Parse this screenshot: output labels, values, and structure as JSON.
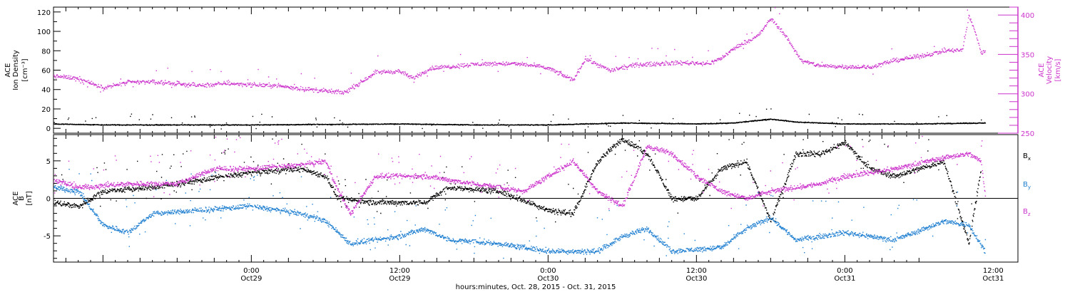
{
  "chart_data": [
    {
      "type": "scatter",
      "panel": "top",
      "x_range": [
        "2015-10-28T08:00",
        "2015-10-31T14:00"
      ],
      "ylabel_left": [
        "ACE",
        "Ion Density",
        "[cm⁻³]"
      ],
      "ylabel_right": [
        "ACE",
        "Velocity",
        "[km/s]"
      ],
      "y_left_ticks": [
        "0",
        "20",
        "40",
        "60",
        "80",
        "100",
        "120"
      ],
      "y_left_range": [
        -5,
        125
      ],
      "y_right_ticks": [
        "250",
        "300",
        "350",
        "400"
      ],
      "y_right_range": [
        250,
        410
      ],
      "series": [
        {
          "axis": "right",
          "color": "#cc33cc",
          "points": [
            [
              "10-28 08:00",
              323
            ],
            [
              "10-28 10:00",
              320
            ],
            [
              "10-28 12:00",
              308
            ],
            [
              "10-28 14:00",
              315
            ],
            [
              "10-28 16:00",
              316
            ],
            [
              "10-28 18:00",
              313
            ],
            [
              "10-28 20:00",
              311
            ],
            [
              "10-28 22:00",
              314
            ],
            [
              "10-29 00:00",
              312
            ],
            [
              "10-29 02:00",
              311
            ],
            [
              "10-29 04:00",
              307
            ],
            [
              "10-29 06:00",
              304
            ],
            [
              "10-29 07:30",
              302
            ],
            [
              "10-29 09:00",
              317
            ],
            [
              "10-29 10:00",
              328
            ],
            [
              "10-29 12:00",
              329
            ],
            [
              "10-29 13:00",
              320
            ],
            [
              "10-29 14:30",
              333
            ],
            [
              "10-29 16:00",
              335
            ],
            [
              "10-29 18:00",
              338
            ],
            [
              "10-29 20:00",
              339
            ],
            [
              "10-29 22:00",
              338
            ],
            [
              "10-30 00:00",
              333
            ],
            [
              "10-30 02:00",
              318
            ],
            [
              "10-30 03:00",
              345
            ],
            [
              "10-30 05:00",
              330
            ],
            [
              "10-30 07:00",
              337
            ],
            [
              "10-30 09:00",
              339
            ],
            [
              "10-30 11:00",
              340
            ],
            [
              "10-30 13:00",
              339
            ],
            [
              "10-30 14:00",
              346
            ],
            [
              "10-30 15:00",
              358
            ],
            [
              "10-30 17:00",
              375
            ],
            [
              "10-30 18:00",
              396
            ],
            [
              "10-30 19:00",
              378
            ],
            [
              "10-30 20:30",
              342
            ],
            [
              "10-30 22:00",
              336
            ],
            [
              "10-31 00:00",
              335
            ],
            [
              "10-31 02:00",
              334
            ],
            [
              "10-31 04:00",
              343
            ],
            [
              "10-31 06:00",
              348
            ],
            [
              "10-31 08:00",
              355
            ],
            [
              "10-31 09:30",
              356
            ],
            [
              "10-31 10:00",
              400
            ],
            [
              "10-31 10:40",
              372
            ],
            [
              "10-31 11:00",
              352
            ],
            [
              "10-31 11:20",
              355
            ]
          ]
        },
        {
          "axis": "left",
          "color": "#000000",
          "points": [
            [
              "10-28 08:00",
              5
            ],
            [
              "10-28 12:00",
              4
            ],
            [
              "10-28 18:00",
              4
            ],
            [
              "10-29 00:00",
              4
            ],
            [
              "10-29 06:00",
              4.5
            ],
            [
              "10-29 12:00",
              5
            ],
            [
              "10-29 18:00",
              4
            ],
            [
              "10-30 00:00",
              4
            ],
            [
              "10-30 06:00",
              6
            ],
            [
              "10-30 12:00",
              5
            ],
            [
              "10-30 15:00",
              6
            ],
            [
              "10-30 18:00",
              10
            ],
            [
              "10-30 20:00",
              7
            ],
            [
              "10-31 00:00",
              5
            ],
            [
              "10-31 06:00",
              5
            ],
            [
              "10-31 11:20",
              6
            ]
          ]
        }
      ]
    },
    {
      "type": "scatter",
      "panel": "bottom",
      "x_range": [
        "2015-10-28T08:00",
        "2015-10-31T14:00"
      ],
      "ylabel_left": [
        "ACE",
        "B",
        "[nT]"
      ],
      "y_ticks": [
        "-5",
        "0",
        "5"
      ],
      "y_range": [
        -8.5,
        8.5
      ],
      "x_ticks": [
        {
          "time": "10-29 00:00",
          "label1": "0:00",
          "label2": "Oct29"
        },
        {
          "time": "10-29 12:00",
          "label1": "12:00",
          "label2": "Oct29"
        },
        {
          "time": "10-30 00:00",
          "label1": "0:00",
          "label2": "Oct30"
        },
        {
          "time": "10-30 12:00",
          "label1": "12:00",
          "label2": "Oct30"
        },
        {
          "time": "10-31 00:00",
          "label1": "0:00",
          "label2": "Oct31"
        },
        {
          "time": "10-31 12:00",
          "label1": "12:00",
          "label2": "Oct31"
        }
      ],
      "xlabel": "hours:minutes, Oct. 28, 2015 - Oct. 31, 2015",
      "legend": [
        {
          "main": "B",
          "sub": "x",
          "color": "#000000"
        },
        {
          "main": "B",
          "sub": "y",
          "color": "#1f7fd0"
        },
        {
          "main": "B",
          "sub": "z",
          "color": "#cc33cc"
        }
      ],
      "series": [
        {
          "color": "#000000",
          "points": [
            [
              "10-28 08:00",
              -0.5
            ],
            [
              "10-28 10:00",
              -1
            ],
            [
              "10-28 12:00",
              1
            ],
            [
              "10-28 16:00",
              1.5
            ],
            [
              "10-28 20:00",
              2.5
            ],
            [
              "10-29 00:00",
              3.5
            ],
            [
              "10-29 04:00",
              4
            ],
            [
              "10-29 06:00",
              3
            ],
            [
              "10-29 07:00",
              0
            ],
            [
              "10-29 10:00",
              -0.5
            ],
            [
              "10-29 14:00",
              -0.5
            ],
            [
              "10-29 16:00",
              1.5
            ],
            [
              "10-29 20:00",
              1
            ],
            [
              "10-30 00:00",
              -1.5
            ],
            [
              "10-30 02:00",
              -2
            ],
            [
              "10-30 04:00",
              5
            ],
            [
              "10-30 06:00",
              8
            ],
            [
              "10-30 08:00",
              6
            ],
            [
              "10-30 10:00",
              0
            ],
            [
              "10-30 12:00",
              0
            ],
            [
              "10-30 14:00",
              4
            ],
            [
              "10-30 16:00",
              5
            ],
            [
              "10-30 18:00",
              -3
            ],
            [
              "10-30 20:00",
              6
            ],
            [
              "10-30 22:00",
              6
            ],
            [
              "10-31 00:00",
              7.5
            ],
            [
              "10-31 02:00",
              4
            ],
            [
              "10-31 04:00",
              3
            ],
            [
              "10-31 06:00",
              4
            ],
            [
              "10-31 08:00",
              5
            ],
            [
              "10-31 10:00",
              -6
            ],
            [
              "10-31 11:00",
              4
            ]
          ]
        },
        {
          "color": "#1f7fd0",
          "points": [
            [
              "10-28 08:00",
              1.5
            ],
            [
              "10-28 10:00",
              1
            ],
            [
              "10-28 12:00",
              -3.5
            ],
            [
              "10-28 14:00",
              -4.5
            ],
            [
              "10-28 16:00",
              -2
            ],
            [
              "10-28 20:00",
              -1.5
            ],
            [
              "10-29 00:00",
              -1
            ],
            [
              "10-29 04:00",
              -2
            ],
            [
              "10-29 06:00",
              -3
            ],
            [
              "10-29 08:00",
              -6
            ],
            [
              "10-29 12:00",
              -5
            ],
            [
              "10-29 14:00",
              -4
            ],
            [
              "10-29 16:00",
              -5.5
            ],
            [
              "10-29 20:00",
              -6
            ],
            [
              "10-30 00:00",
              -7
            ],
            [
              "10-30 04:00",
              -7
            ],
            [
              "10-30 06:00",
              -5
            ],
            [
              "10-30 08:00",
              -4
            ],
            [
              "10-30 10:00",
              -7
            ],
            [
              "10-30 14:00",
              -6.5
            ],
            [
              "10-30 16:00",
              -4
            ],
            [
              "10-30 18:00",
              -2.5
            ],
            [
              "10-30 20:00",
              -5.5
            ],
            [
              "10-31 00:00",
              -4.5
            ],
            [
              "10-31 04:00",
              -5.5
            ],
            [
              "10-31 08:00",
              -3
            ],
            [
              "10-31 10:00",
              -3.5
            ],
            [
              "10-31 11:20",
              -7
            ]
          ]
        },
        {
          "color": "#cc33cc",
          "points": [
            [
              "10-28 08:00",
              2.5
            ],
            [
              "10-28 10:00",
              1.5
            ],
            [
              "10-28 14:00",
              2
            ],
            [
              "10-28 18:00",
              2
            ],
            [
              "10-28 21:00",
              4
            ],
            [
              "10-29 00:00",
              4
            ],
            [
              "10-29 04:00",
              4.5
            ],
            [
              "10-29 06:00",
              5
            ],
            [
              "10-29 07:00",
              1
            ],
            [
              "10-29 08:00",
              -2
            ],
            [
              "10-29 10:00",
              3
            ],
            [
              "10-29 14:00",
              3
            ],
            [
              "10-29 18:00",
              2
            ],
            [
              "10-29 22:00",
              1
            ],
            [
              "10-30 00:00",
              3
            ],
            [
              "10-30 02:00",
              5
            ],
            [
              "10-30 04:00",
              1
            ],
            [
              "10-30 06:00",
              -1
            ],
            [
              "10-30 08:00",
              7
            ],
            [
              "10-30 10:00",
              6
            ],
            [
              "10-30 12:00",
              3
            ],
            [
              "10-30 14:00",
              1
            ],
            [
              "10-30 16:00",
              0
            ],
            [
              "10-30 18:00",
              1
            ],
            [
              "10-30 22:00",
              2
            ],
            [
              "10-31 00:00",
              3
            ],
            [
              "10-31 04:00",
              4
            ],
            [
              "10-31 08:00",
              5.5
            ],
            [
              "10-31 10:00",
              6
            ],
            [
              "10-31 11:00",
              5
            ],
            [
              "10-31 11:20",
              0.5
            ]
          ]
        }
      ]
    }
  ]
}
